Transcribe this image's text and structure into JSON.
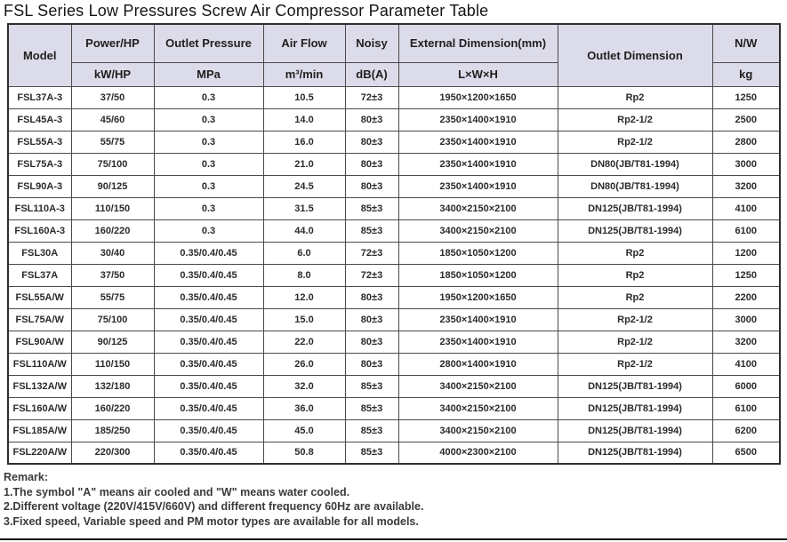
{
  "title": "FSL Series Low Pressures Screw Air Compressor Parameter Table",
  "table": {
    "headers": {
      "model": "Model",
      "power": "Power/HP",
      "pressure": "Outlet Pressure",
      "air_flow": "Air Flow",
      "noisy": "Noisy",
      "dimension": "External Dimension(mm)",
      "outlet": "Outlet Dimension",
      "weight": "N/W"
    },
    "units": {
      "power": "kW/HP",
      "pressure": "MPa",
      "air_flow": "m³/min",
      "noisy": "dB(A)",
      "dimension": "L×W×H",
      "weight": "kg"
    },
    "row_keys": [
      "model",
      "power",
      "pressure",
      "air_flow",
      "noisy",
      "dimension",
      "outlet",
      "weight"
    ],
    "rows": [
      {
        "model": "FSL37A-3",
        "power": "37/50",
        "pressure": "0.3",
        "air_flow": "10.5",
        "noisy": "72±3",
        "dimension": "1950×1200×1650",
        "outlet": "Rp2",
        "weight": "1250"
      },
      {
        "model": "FSL45A-3",
        "power": "45/60",
        "pressure": "0.3",
        "air_flow": "14.0",
        "noisy": "80±3",
        "dimension": "2350×1400×1910",
        "outlet": "Rp2-1/2",
        "weight": "2500"
      },
      {
        "model": "FSL55A-3",
        "power": "55/75",
        "pressure": "0.3",
        "air_flow": "16.0",
        "noisy": "80±3",
        "dimension": "2350×1400×1910",
        "outlet": "Rp2-1/2",
        "weight": "2800"
      },
      {
        "model": "FSL75A-3",
        "power": "75/100",
        "pressure": "0.3",
        "air_flow": "21.0",
        "noisy": "80±3",
        "dimension": "2350×1400×1910",
        "outlet": "DN80(JB/T81-1994)",
        "weight": "3000"
      },
      {
        "model": "FSL90A-3",
        "power": "90/125",
        "pressure": "0.3",
        "air_flow": "24.5",
        "noisy": "80±3",
        "dimension": "2350×1400×1910",
        "outlet": "DN80(JB/T81-1994)",
        "weight": "3200"
      },
      {
        "model": "FSL110A-3",
        "power": "110/150",
        "pressure": "0.3",
        "air_flow": "31.5",
        "noisy": "85±3",
        "dimension": "3400×2150×2100",
        "outlet": "DN125(JB/T81-1994)",
        "weight": "4100"
      },
      {
        "model": "FSL160A-3",
        "power": "160/220",
        "pressure": "0.3",
        "air_flow": "44.0",
        "noisy": "85±3",
        "dimension": "3400×2150×2100",
        "outlet": "DN125(JB/T81-1994)",
        "weight": "6100"
      },
      {
        "model": "FSL30A",
        "power": "30/40",
        "pressure": "0.35/0.4/0.45",
        "air_flow": "6.0",
        "noisy": "72±3",
        "dimension": "1850×1050×1200",
        "outlet": "Rp2",
        "weight": "1200"
      },
      {
        "model": "FSL37A",
        "power": "37/50",
        "pressure": "0.35/0.4/0.45",
        "air_flow": "8.0",
        "noisy": "72±3",
        "dimension": "1850×1050×1200",
        "outlet": "Rp2",
        "weight": "1250"
      },
      {
        "model": "FSL55A/W",
        "power": "55/75",
        "pressure": "0.35/0.4/0.45",
        "air_flow": "12.0",
        "noisy": "80±3",
        "dimension": "1950×1200×1650",
        "outlet": "Rp2",
        "weight": "2200"
      },
      {
        "model": "FSL75A/W",
        "power": "75/100",
        "pressure": "0.35/0.4/0.45",
        "air_flow": "15.0",
        "noisy": "80±3",
        "dimension": "2350×1400×1910",
        "outlet": "Rp2-1/2",
        "weight": "3000"
      },
      {
        "model": "FSL90A/W",
        "power": "90/125",
        "pressure": "0.35/0.4/0.45",
        "air_flow": "22.0",
        "noisy": "80±3",
        "dimension": "2350×1400×1910",
        "outlet": "Rp2-1/2",
        "weight": "3200"
      },
      {
        "model": "FSL110A/W",
        "power": "110/150",
        "pressure": "0.35/0.4/0.45",
        "air_flow": "26.0",
        "noisy": "80±3",
        "dimension": "2800×1400×1910",
        "outlet": "Rp2-1/2",
        "weight": "4100"
      },
      {
        "model": "FSL132A/W",
        "power": "132/180",
        "pressure": "0.35/0.4/0.45",
        "air_flow": "32.0",
        "noisy": "85±3",
        "dimension": "3400×2150×2100",
        "outlet": "DN125(JB/T81-1994)",
        "weight": "6000"
      },
      {
        "model": "FSL160A/W",
        "power": "160/220",
        "pressure": "0.35/0.4/0.45",
        "air_flow": "36.0",
        "noisy": "85±3",
        "dimension": "3400×2150×2100",
        "outlet": "DN125(JB/T81-1994)",
        "weight": "6100"
      },
      {
        "model": "FSL185A/W",
        "power": "185/250",
        "pressure": "0.35/0.4/0.45",
        "air_flow": "45.0",
        "noisy": "85±3",
        "dimension": "3400×2150×2100",
        "outlet": "DN125(JB/T81-1994)",
        "weight": "6200"
      },
      {
        "model": "FSL220A/W",
        "power": "220/300",
        "pressure": "0.35/0.4/0.45",
        "air_flow": "50.8",
        "noisy": "85±3",
        "dimension": "4000×2300×2100",
        "outlet": "DN125(JB/T81-1994)",
        "weight": "6500"
      }
    ]
  },
  "remark": {
    "heading": "Remark:",
    "notes": [
      "1.The symbol \"A\" means air cooled and \"W\" means water cooled.",
      "2.Different voltage (220V/415V/660V) and different frequency 60Hz are available.",
      "3.Fixed speed, Variable speed and PM motor types are available for all models."
    ]
  },
  "colors": {
    "header_background": "#dcdbe9",
    "inner_border": "#4a4a4a",
    "outer_border": "#2e2e2e",
    "text": "#2b2b2b"
  }
}
